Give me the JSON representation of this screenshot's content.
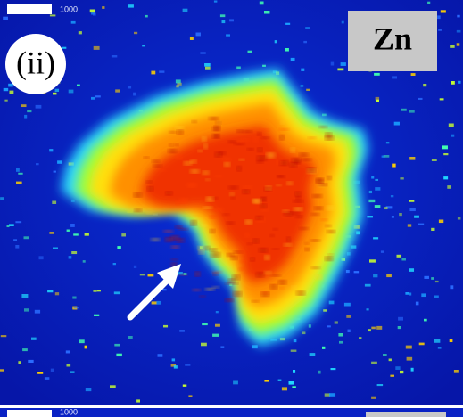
{
  "panels": [
    {
      "scale_label": "1000",
      "panel_label": "(ii)",
      "element": "Zn"
    },
    {
      "scale_label": "1000"
    }
  ]
}
